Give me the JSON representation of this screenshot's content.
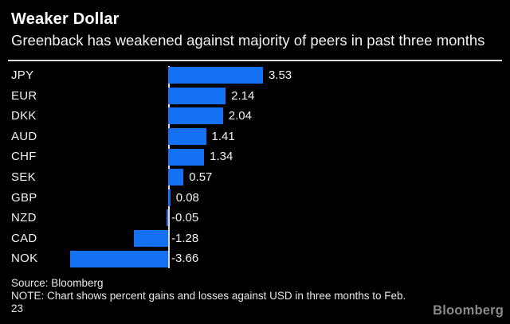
{
  "header": {
    "title": "Weaker Dollar",
    "subtitle": "Greenback has weakened against majority of peers in past three months"
  },
  "chart_data": {
    "type": "bar",
    "orientation": "horizontal",
    "title": "Weaker Dollar",
    "subtitle": "Greenback has weakened against majority of peers in past three months",
    "xlabel": "",
    "ylabel": "",
    "baseline": 0,
    "xlim": [
      -3.9,
      3.9
    ],
    "grid": false,
    "legend": false,
    "value_labels_shown": true,
    "categories": [
      "JPY",
      "EUR",
      "DKK",
      "AUD",
      "CHF",
      "SEK",
      "GBP",
      "NZD",
      "CAD",
      "NOK"
    ],
    "values": [
      3.53,
      2.14,
      2.04,
      1.41,
      1.34,
      0.57,
      0.08,
      -0.05,
      -1.28,
      -3.66
    ],
    "value_labels": [
      "3.53",
      "2.14",
      "2.04",
      "1.41",
      "1.34",
      "0.57",
      "0.08",
      "-0.05",
      "-1.28",
      "-3.66"
    ]
  },
  "footer": {
    "source": "Source: Bloomberg",
    "note_line1": "NOTE: Chart shows percent gains and losses against USD in three months to Feb.",
    "note_line2": "23",
    "brand": "Bloomberg"
  },
  "colors": {
    "background": "#000000",
    "bar": "#1471f2",
    "text": "#f2f2f2",
    "title": "#ffffff",
    "rule": "#dcdcdc",
    "brand": "#8a8a8a"
  }
}
